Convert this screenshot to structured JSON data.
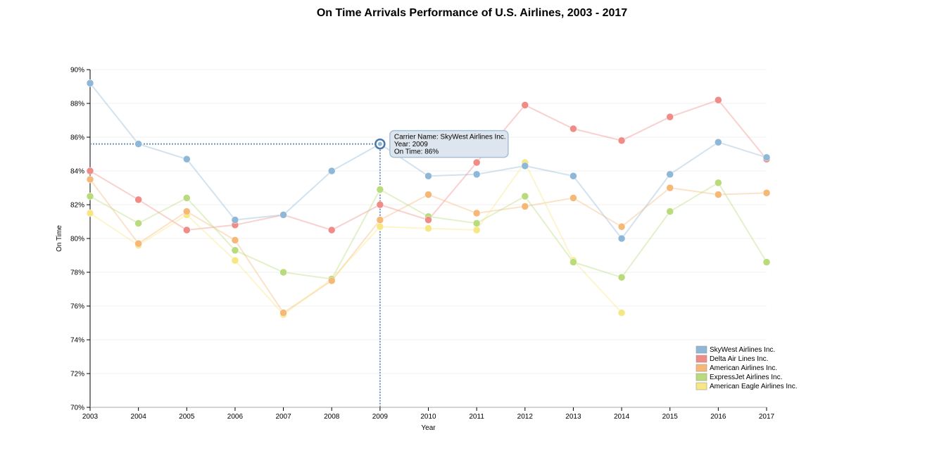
{
  "chart_data": {
    "type": "line",
    "title": "On Time Arrivals Performance of U.S. Airlines, 2003 - 2017",
    "xlabel": "Year",
    "ylabel": "On Time",
    "x": [
      2003,
      2004,
      2005,
      2006,
      2007,
      2008,
      2009,
      2010,
      2011,
      2012,
      2013,
      2014,
      2015,
      2016,
      2017
    ],
    "ylim": [
      70,
      90
    ],
    "yticks": [
      70,
      72,
      74,
      76,
      78,
      80,
      82,
      84,
      86,
      88,
      90
    ],
    "ytick_format": "%",
    "grid": "horizontal",
    "legend_position": "bottom-right",
    "series": [
      {
        "name": "SkyWest Airlines Inc.",
        "color": "#8fb8d8",
        "values": [
          89.2,
          85.6,
          84.7,
          81.1,
          81.4,
          84.0,
          85.6,
          83.7,
          83.8,
          84.3,
          83.7,
          80.0,
          83.8,
          85.7,
          84.8
        ]
      },
      {
        "name": "Delta Air Lines Inc.",
        "color": "#f08c87",
        "values": [
          84.0,
          82.3,
          80.5,
          80.8,
          81.4,
          80.5,
          82.0,
          81.1,
          84.5,
          87.9,
          86.5,
          85.8,
          87.2,
          88.2,
          84.7
        ]
      },
      {
        "name": "American Airlines Inc.",
        "color": "#f5b877",
        "values": [
          83.5,
          79.7,
          81.6,
          79.9,
          75.6,
          77.5,
          81.1,
          82.6,
          81.5,
          81.9,
          82.4,
          80.7,
          83.0,
          82.6,
          82.7
        ]
      },
      {
        "name": "ExpressJet Airlines Inc.",
        "color": "#b8db7c",
        "values": [
          82.5,
          80.9,
          82.4,
          79.3,
          78.0,
          77.6,
          82.9,
          81.3,
          80.9,
          82.5,
          78.6,
          77.7,
          81.6,
          83.3,
          78.6
        ]
      },
      {
        "name": "American Eagle Airlines Inc.",
        "color": "#f7e783",
        "values": [
          81.5,
          79.6,
          81.4,
          78.7,
          75.5,
          77.6,
          80.7,
          80.6,
          80.5,
          84.5,
          78.7,
          75.6,
          null,
          null,
          null
        ]
      }
    ],
    "tooltip": {
      "series_index": 0,
      "x": 2009,
      "y": 85.6,
      "lines": [
        "Carrier Name: SkyWest Airlines Inc.",
        "Year: 2009",
        "On Time: 86%"
      ]
    }
  }
}
